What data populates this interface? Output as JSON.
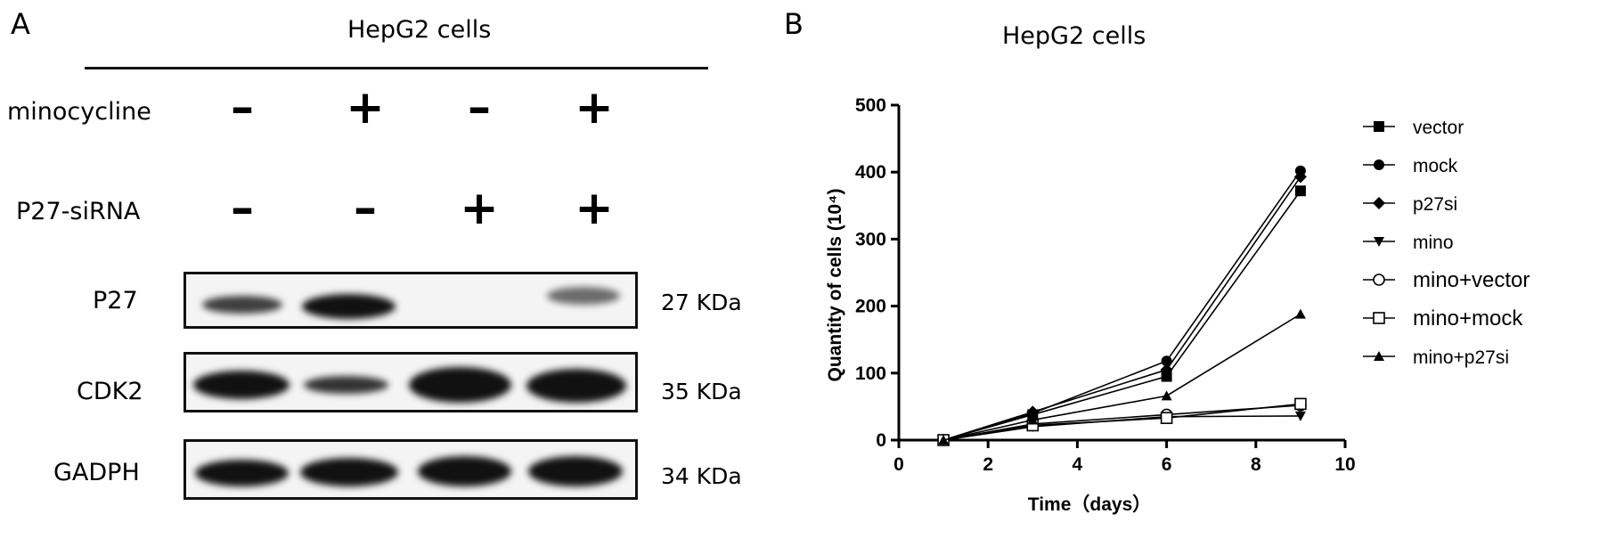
{
  "panelA": {
    "letter": "A",
    "title": "HepG2 cells",
    "rows": [
      {
        "label": "minocycline",
        "signs": [
          "–",
          "+",
          "–",
          "+"
        ]
      },
      {
        "label": "P27-siRNA",
        "signs": [
          "–",
          "–",
          "+",
          "+"
        ]
      }
    ],
    "blots": [
      {
        "label": "P27",
        "kda": "27 KDa"
      },
      {
        "label": "CDK2",
        "kda": "35 KDa"
      },
      {
        "label": "GADPH",
        "kda": "34 KDa"
      }
    ]
  },
  "panelB": {
    "letter": "B",
    "title": "HepG2 cells"
  },
  "chart_data": {
    "type": "line",
    "title": "HepG2 cells",
    "xlabel": "Time（days）",
    "ylabel": "Quantity of cells (10⁴)",
    "xlim": [
      0,
      10
    ],
    "ylim": [
      0,
      500
    ],
    "xticks": [
      0,
      2,
      4,
      6,
      8,
      10
    ],
    "yticks": [
      0,
      100,
      200,
      300,
      400,
      500
    ],
    "x": [
      1,
      3,
      6,
      9
    ],
    "legend_position": "right",
    "series": [
      {
        "name": "vector",
        "marker": "square-filled",
        "values": [
          0,
          38,
          95,
          372
        ]
      },
      {
        "name": "mock",
        "marker": "circle-filled",
        "values": [
          0,
          40,
          118,
          402
        ]
      },
      {
        "name": "p27si",
        "marker": "diamond-filled",
        "values": [
          0,
          42,
          105,
          393
        ]
      },
      {
        "name": "mino",
        "marker": "triangle-down",
        "values": [
          0,
          20,
          35,
          36
        ]
      },
      {
        "name": "mino+vector",
        "marker": "circle-open",
        "values": [
          0,
          24,
          38,
          52
        ]
      },
      {
        "name": "mino+mock",
        "marker": "square-open",
        "values": [
          0,
          22,
          33,
          54
        ]
      },
      {
        "name": "mino+p27si",
        "marker": "triangle-up",
        "values": [
          0,
          30,
          66,
          188
        ]
      }
    ]
  }
}
